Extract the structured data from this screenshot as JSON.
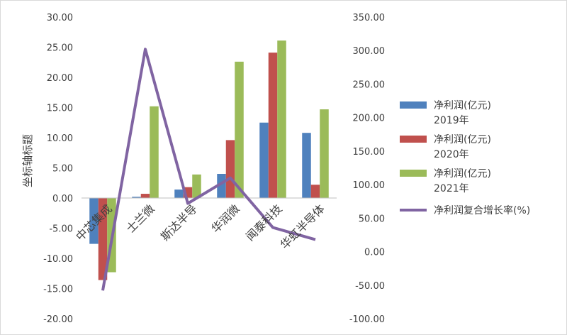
{
  "chart_data": {
    "type": "bar",
    "title": "",
    "ylabel": "坐标轴标题",
    "xlabel": "",
    "categories": [
      "中芯集成",
      "士兰微",
      "斯达半导",
      "华润微",
      "闻泰科技",
      "华虹半导体"
    ],
    "ylim": [
      -20,
      30
    ],
    "yticks": [
      "30.00",
      "25.00",
      "20.00",
      "15.00",
      "10.00",
      "5.00",
      "0.00",
      "-5.00",
      "-10.00",
      "-15.00",
      "-20.00"
    ],
    "y2lim": [
      -100,
      350
    ],
    "y2ticks": [
      "350.00",
      "300.00",
      "250.00",
      "200.00",
      "150.00",
      "100.00",
      "50.00",
      "0.00",
      "-50.00",
      "-100.00"
    ],
    "series": [
      {
        "name": "净利润(亿元)2019年",
        "legend_lines": [
          "净利润(亿元)",
          "2019年"
        ],
        "kind": "bar",
        "axis": "left",
        "color": "#4F81BD",
        "values": [
          -7.6,
          0.2,
          1.4,
          4.0,
          12.5,
          10.8
        ]
      },
      {
        "name": "净利润(亿元)2020年",
        "legend_lines": [
          "净利润(亿元)",
          "2020年"
        ],
        "kind": "bar",
        "axis": "left",
        "color": "#C0504D",
        "values": [
          -13.6,
          0.7,
          1.8,
          9.6,
          24.1,
          2.2
        ]
      },
      {
        "name": "净利润(亿元)2021年",
        "legend_lines": [
          "净利润(亿元)",
          "2021年"
        ],
        "kind": "bar",
        "axis": "left",
        "color": "#9BBB59",
        "values": [
          -12.3,
          15.2,
          3.9,
          22.6,
          26.1,
          14.7
        ]
      },
      {
        "name": "净利润复合增长率(%)",
        "legend_lines": [
          "净利润复合增长率(%)"
        ],
        "kind": "line",
        "axis": "right",
        "color": "#8064A2",
        "values": [
          -58,
          302,
          72,
          110,
          36,
          18
        ]
      }
    ],
    "legend_position": "right",
    "grid": false
  }
}
